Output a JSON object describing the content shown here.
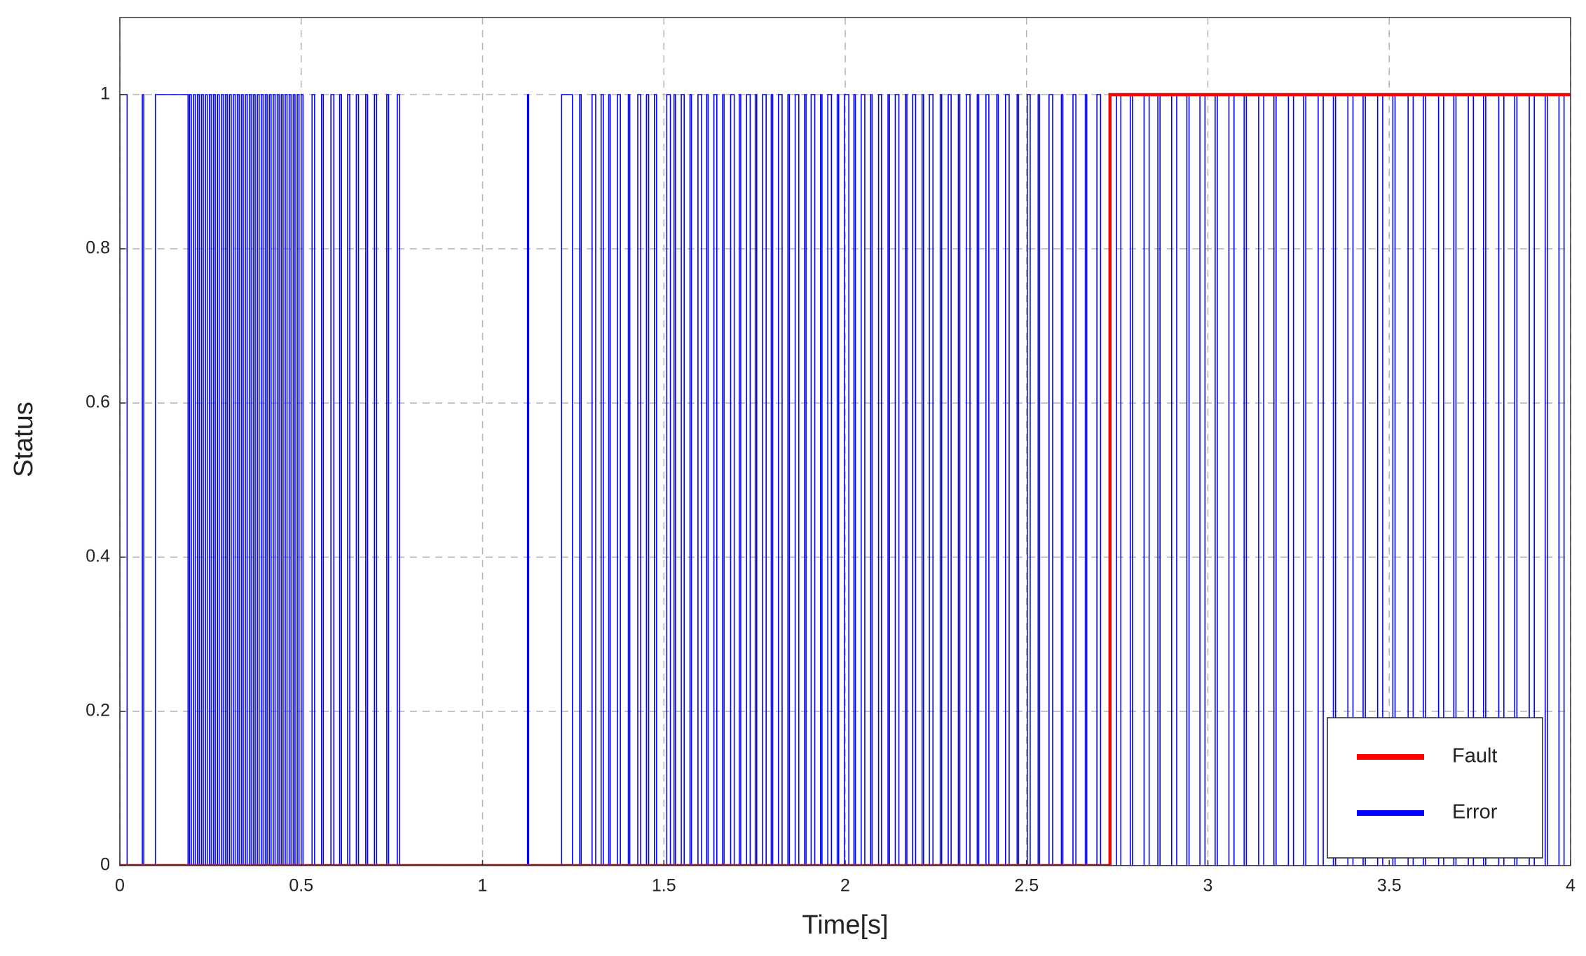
{
  "chart_data": {
    "type": "line",
    "xlabel": "Time[s]",
    "ylabel": "Status",
    "xlim": [
      0,
      4
    ],
    "xticks": [
      0,
      0.5,
      1,
      1.5,
      2,
      2.5,
      3,
      3.5,
      4
    ],
    "ylim": [
      0,
      1.1
    ],
    "yticks": [
      0,
      0.2,
      0.4,
      0.6,
      0.8,
      1
    ],
    "grid": true,
    "legend": "lower right",
    "series": [
      {
        "name": "Fault",
        "color": "#ff0000",
        "x": [
          0,
          2.73,
          2.73,
          4
        ],
        "values": [
          0,
          0,
          1,
          1
        ]
      },
      {
        "name": "Error",
        "color": "#0000ff",
        "x": [
          0,
          0,
          0.02,
          0.02,
          0.062,
          0.062,
          0.066,
          0.066,
          0.098,
          0.098,
          0.188,
          0.188,
          0.192,
          0.192,
          0.197,
          0.197,
          0.203,
          0.203,
          0.208,
          0.208,
          0.214,
          0.214,
          0.219,
          0.219,
          0.225,
          0.225,
          0.23,
          0.23,
          0.236,
          0.236,
          0.241,
          0.241,
          0.247,
          0.247,
          0.252,
          0.252,
          0.258,
          0.258,
          0.263,
          0.263,
          0.269,
          0.269,
          0.274,
          0.274,
          0.28,
          0.28,
          0.285,
          0.285,
          0.291,
          0.291,
          0.296,
          0.296,
          0.302,
          0.302,
          0.307,
          0.307,
          0.313,
          0.313,
          0.318,
          0.318,
          0.324,
          0.324,
          0.329,
          0.329,
          0.335,
          0.335,
          0.34,
          0.34,
          0.346,
          0.346,
          0.351,
          0.351,
          0.357,
          0.357,
          0.362,
          0.362,
          0.368,
          0.368,
          0.373,
          0.373,
          0.379,
          0.379,
          0.384,
          0.384,
          0.39,
          0.39,
          0.395,
          0.395,
          0.401,
          0.401,
          0.406,
          0.406,
          0.412,
          0.412,
          0.417,
          0.417,
          0.423,
          0.423,
          0.428,
          0.428,
          0.434,
          0.434,
          0.439,
          0.439,
          0.445,
          0.445,
          0.45,
          0.45,
          0.456,
          0.456,
          0.461,
          0.461,
          0.467,
          0.467,
          0.472,
          0.472,
          0.478,
          0.478,
          0.483,
          0.483,
          0.489,
          0.489,
          0.494,
          0.494,
          0.5,
          0.5,
          0.505,
          0.505,
          0.53,
          0.53,
          0.537,
          0.537,
          0.556,
          0.556,
          0.561,
          0.561,
          0.582,
          0.582,
          0.59,
          0.59,
          0.606,
          0.606,
          0.611,
          0.611,
          0.628,
          0.628,
          0.634,
          0.634,
          0.652,
          0.652,
          0.658,
          0.658,
          0.678,
          0.678,
          0.683,
          0.683,
          0.702,
          0.702,
          0.708,
          0.708,
          0.736,
          0.736,
          0.741,
          0.741,
          0.765,
          0.765,
          0.771,
          0.771,
          1.124,
          1.124,
          1.127,
          1.127,
          1.218,
          1.218,
          1.248,
          1.248,
          1.268,
          1.268,
          1.272,
          1.272,
          1.302,
          1.302,
          1.312,
          1.312,
          1.327,
          1.327,
          1.333,
          1.333,
          1.348,
          1.348,
          1.352,
          1.352,
          1.372,
          1.372,
          1.38,
          1.38,
          1.402,
          1.402,
          1.406,
          1.406,
          1.428,
          1.428,
          1.436,
          1.436,
          1.452,
          1.452,
          1.458,
          1.458,
          1.474,
          1.474,
          1.48,
          1.48,
          1.508,
          1.508,
          1.518,
          1.518,
          1.528,
          1.528,
          1.532,
          1.532,
          1.548,
          1.548,
          1.556,
          1.556,
          1.572,
          1.572,
          1.576,
          1.576,
          1.594,
          1.594,
          1.604,
          1.604,
          1.618,
          1.618,
          1.622,
          1.622,
          1.638,
          1.638,
          1.646,
          1.646,
          1.662,
          1.662,
          1.666,
          1.666,
          1.684,
          1.684,
          1.694,
          1.694,
          1.708,
          1.708,
          1.712,
          1.712,
          1.728,
          1.728,
          1.738,
          1.738,
          1.752,
          1.752,
          1.756,
          1.756,
          1.772,
          1.772,
          1.782,
          1.782,
          1.796,
          1.796,
          1.8,
          1.8,
          1.816,
          1.816,
          1.826,
          1.826,
          1.842,
          1.842,
          1.846,
          1.846,
          1.862,
          1.862,
          1.872,
          1.872,
          1.888,
          1.888,
          1.892,
          1.892,
          1.906,
          1.906,
          1.916,
          1.916,
          1.932,
          1.932,
          1.936,
          1.936,
          1.952,
          1.952,
          1.962,
          1.962,
          1.978,
          1.978,
          1.982,
          1.982,
          1.998,
          1.998,
          2.01,
          2.01,
          2.024,
          2.024,
          2.028,
          2.028,
          2.044,
          2.044,
          2.054,
          2.054,
          2.07,
          2.07,
          2.074,
          2.074,
          2.092,
          2.092,
          2.1,
          2.1,
          2.118,
          2.118,
          2.122,
          2.122,
          2.138,
          2.138,
          2.148,
          2.148,
          2.166,
          2.166,
          2.17,
          2.17,
          2.186,
          2.186,
          2.194,
          2.194,
          2.212,
          2.212,
          2.216,
          2.216,
          2.232,
          2.232,
          2.242,
          2.242,
          2.262,
          2.262,
          2.266,
          2.266,
          2.284,
          2.284,
          2.292,
          2.292,
          2.312,
          2.312,
          2.316,
          2.316,
          2.334,
          2.334,
          2.344,
          2.344,
          2.364,
          2.364,
          2.368,
          2.368,
          2.388,
          2.388,
          2.396,
          2.396,
          2.418,
          2.418,
          2.422,
          2.422,
          2.442,
          2.442,
          2.452,
          2.452,
          2.474,
          2.474,
          2.478,
          2.478,
          2.502,
          2.502,
          2.51,
          2.51,
          2.532,
          2.532,
          2.536,
          2.536,
          2.562,
          2.562,
          2.572,
          2.572,
          2.596,
          2.596,
          2.6,
          2.6,
          2.628,
          2.628,
          2.636,
          2.636,
          2.662,
          2.662,
          2.666,
          2.666,
          2.694,
          2.694,
          2.704,
          2.704,
          2.748,
          2.748,
          2.76,
          2.76,
          2.786,
          2.786,
          2.792,
          2.792,
          2.824,
          2.824,
          2.838,
          2.838,
          2.862,
          2.862,
          2.868,
          2.868,
          2.9,
          2.9,
          2.914,
          2.914,
          2.942,
          2.942,
          2.948,
          2.948,
          2.978,
          2.978,
          2.992,
          2.992,
          3.02,
          3.02,
          3.026,
          3.026,
          3.058,
          3.058,
          3.072,
          3.072,
          3.1,
          3.1,
          3.106,
          3.106,
          3.14,
          3.14,
          3.154,
          3.154,
          3.182,
          3.182,
          3.188,
          3.188,
          3.222,
          3.222,
          3.236,
          3.236,
          3.264,
          3.264,
          3.27,
          3.27,
          3.304,
          3.304,
          3.318,
          3.318,
          3.346,
          3.346,
          3.352,
          3.352,
          3.386,
          3.386,
          3.4,
          3.4,
          3.428,
          3.428,
          3.434,
          3.434,
          3.468,
          3.468,
          3.482,
          3.482,
          3.51,
          3.51,
          3.516,
          3.516,
          3.552,
          3.552,
          3.566,
          3.566,
          3.594,
          3.594,
          3.6,
          3.6,
          3.636,
          3.636,
          3.65,
          3.65,
          3.678,
          3.678,
          3.684,
          3.684,
          3.718,
          3.718,
          3.732,
          3.732,
          3.76,
          3.76,
          3.766,
          3.766,
          3.802,
          3.802,
          3.816,
          3.816,
          3.846,
          3.846,
          3.852,
          3.852,
          3.886,
          3.886,
          3.9,
          3.9,
          3.93,
          3.93,
          3.936,
          3.936,
          3.968,
          3.968,
          3.982,
          3.982,
          4
        ],
        "values": [
          0,
          1,
          1,
          0,
          0,
          1,
          1,
          0,
          0,
          1,
          1,
          0,
          0,
          1,
          1,
          0,
          0,
          1,
          1,
          0,
          0,
          1,
          1,
          0,
          0,
          1,
          1,
          0,
          0,
          1,
          1,
          0,
          0,
          1,
          1,
          0,
          0,
          1,
          1,
          0,
          0,
          1,
          1,
          0,
          0,
          1,
          1,
          0,
          0,
          1,
          1,
          0,
          0,
          1,
          1,
          0,
          0,
          1,
          1,
          0,
          0,
          1,
          1,
          0,
          0,
          1,
          1,
          0,
          0,
          1,
          1,
          0,
          0,
          1,
          1,
          0,
          0,
          1,
          1,
          0,
          0,
          1,
          1,
          0,
          0,
          1,
          1,
          0,
          0,
          1,
          1,
          0,
          0,
          1,
          1,
          0,
          0,
          1,
          1,
          0,
          0,
          1,
          1,
          0,
          0,
          1,
          1,
          0,
          0,
          1,
          1,
          0,
          0,
          1,
          1,
          0,
          0,
          1,
          1,
          0,
          0,
          1,
          1,
          0,
          0,
          1,
          1,
          0,
          0,
          1,
          1,
          0,
          0,
          1,
          1,
          0,
          0,
          1,
          1,
          0,
          0,
          1,
          1,
          0,
          0,
          1,
          1,
          0,
          0,
          1,
          1,
          0,
          0,
          1,
          1,
          0,
          0,
          1,
          1,
          0,
          0,
          1,
          1,
          0,
          0,
          1,
          1,
          0,
          0,
          1,
          1,
          0,
          0,
          1,
          1,
          0,
          0,
          1,
          1,
          0,
          0,
          1,
          1,
          0,
          0,
          1,
          1,
          0,
          0,
          1,
          1,
          0,
          0,
          1,
          1,
          0,
          0,
          1,
          1,
          0,
          0,
          1,
          1,
          0,
          0,
          1,
          1,
          0,
          0,
          1,
          1,
          0,
          0,
          1,
          1,
          0,
          0,
          1,
          1,
          0,
          0,
          1,
          1,
          0,
          0,
          1,
          1,
          0,
          0,
          1,
          1,
          0,
          0,
          1,
          1,
          0,
          0,
          1,
          1,
          0,
          0,
          1,
          1,
          0,
          0,
          1,
          1,
          0,
          0,
          1,
          1,
          0,
          0,
          1,
          1,
          0,
          0,
          1,
          1,
          0,
          0,
          1,
          1,
          0,
          0,
          1,
          1,
          0,
          0,
          1,
          1,
          0,
          0,
          1,
          1,
          0,
          0,
          1,
          1,
          0,
          0,
          1,
          1,
          0,
          0,
          1,
          1,
          0,
          0,
          1,
          1,
          0,
          0,
          1,
          1,
          0,
          0,
          1,
          1,
          0,
          0,
          1,
          1,
          0,
          0,
          1,
          1,
          0,
          0,
          1,
          1,
          0,
          0,
          1,
          1,
          0,
          0,
          1,
          1,
          0,
          0,
          1,
          1,
          0,
          0,
          1,
          1,
          0,
          0,
          1,
          1,
          0,
          0,
          1,
          1,
          0,
          0,
          1,
          1,
          0,
          0,
          1,
          1,
          0,
          0,
          1,
          1,
          0,
          0,
          1,
          1,
          0,
          0,
          1,
          1,
          0,
          0,
          1,
          1,
          0,
          0,
          1,
          1,
          0,
          0,
          1,
          1,
          0,
          0,
          1,
          1,
          0,
          0,
          1,
          1,
          0,
          0,
          1,
          1,
          0,
          0,
          1,
          1,
          0,
          0,
          1,
          1,
          0,
          0,
          1,
          1,
          0,
          0,
          1,
          1,
          0,
          0,
          1,
          1,
          0,
          0,
          1,
          1,
          0,
          0,
          1,
          1,
          0,
          0,
          1,
          1,
          0,
          0,
          1,
          1,
          0,
          0,
          1,
          1,
          0,
          0,
          1,
          1,
          0,
          0,
          1,
          1,
          0,
          0,
          1,
          1,
          0,
          0,
          1,
          1,
          0,
          0,
          1,
          1,
          0,
          0,
          1,
          1,
          0,
          0,
          1,
          1,
          0,
          0,
          1,
          1,
          0,
          0,
          1,
          1,
          0,
          0,
          1,
          1,
          0,
          0,
          1,
          1,
          0,
          0,
          1,
          1,
          0,
          0,
          1,
          1,
          0,
          0,
          1,
          1,
          0,
          0,
          1,
          1,
          0,
          0,
          1,
          1,
          0,
          0,
          1,
          1,
          0,
          0,
          1,
          1,
          0,
          0,
          1,
          1,
          0,
          0,
          1,
          1,
          0,
          0,
          1,
          1,
          0,
          0,
          1,
          1,
          0,
          0,
          1,
          1,
          0,
          0,
          1,
          1,
          0,
          0,
          1,
          1,
          0,
          0,
          1,
          1,
          0,
          0,
          1,
          1,
          0,
          0,
          1,
          1,
          0,
          0
        ]
      }
    ]
  }
}
